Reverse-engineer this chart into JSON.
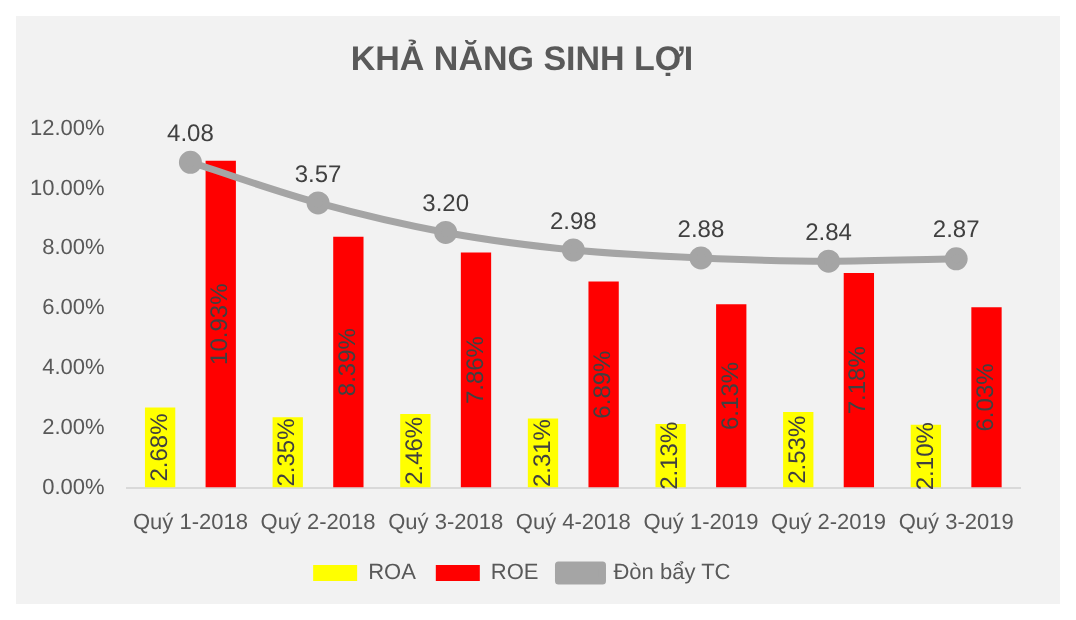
{
  "chart_data": {
    "type": "bar",
    "title": "KHẢ NĂNG SINH LỢI",
    "categories": [
      "Quý 1-2018",
      "Quý 2-2018",
      "Quý 3-2018",
      "Quý 4-2018",
      "Quý 1-2019",
      "Quý 2-2019",
      "Quý 3-2019"
    ],
    "series": [
      {
        "name": "ROA",
        "color": "#ffff00",
        "values": [
          2.68,
          2.35,
          2.46,
          2.31,
          2.13,
          2.53,
          2.1
        ],
        "value_labels": [
          "2.68%",
          "2.35%",
          "2.46%",
          "2.31%",
          "2.13%",
          "2.53%",
          "2.10%"
        ]
      },
      {
        "name": "ROE",
        "color": "#ff0000",
        "values": [
          10.93,
          8.39,
          7.86,
          6.89,
          6.13,
          7.18,
          6.03
        ],
        "value_labels": [
          "10.93%",
          "8.39%",
          "7.86%",
          "6.89%",
          "6.13%",
          "7.18%",
          "6.03%"
        ]
      },
      {
        "name": "Đòn bẩy TC",
        "type": "line",
        "axis": "y2",
        "color": "#a5a5a5",
        "values": [
          4.08,
          3.57,
          3.2,
          2.98,
          2.88,
          2.84,
          2.87
        ],
        "value_labels": [
          "4.08",
          "3.57",
          "3.20",
          "2.98",
          "2.88",
          "2.84",
          "2.87"
        ]
      }
    ],
    "ylim": [
      0,
      12
    ],
    "yticks": [
      {
        "value": 0,
        "label": "0.00%"
      },
      {
        "value": 2,
        "label": "2.00%"
      },
      {
        "value": 4,
        "label": "4.00%"
      },
      {
        "value": 6,
        "label": "6.00%"
      },
      {
        "value": 8,
        "label": "8.00%"
      },
      {
        "value": 10,
        "label": "10.00%"
      },
      {
        "value": 12,
        "label": "12.00%"
      }
    ],
    "tick_labels": "xy",
    "grid": false,
    "legend": "bottom",
    "marker": "circle",
    "line_style": "solid"
  }
}
